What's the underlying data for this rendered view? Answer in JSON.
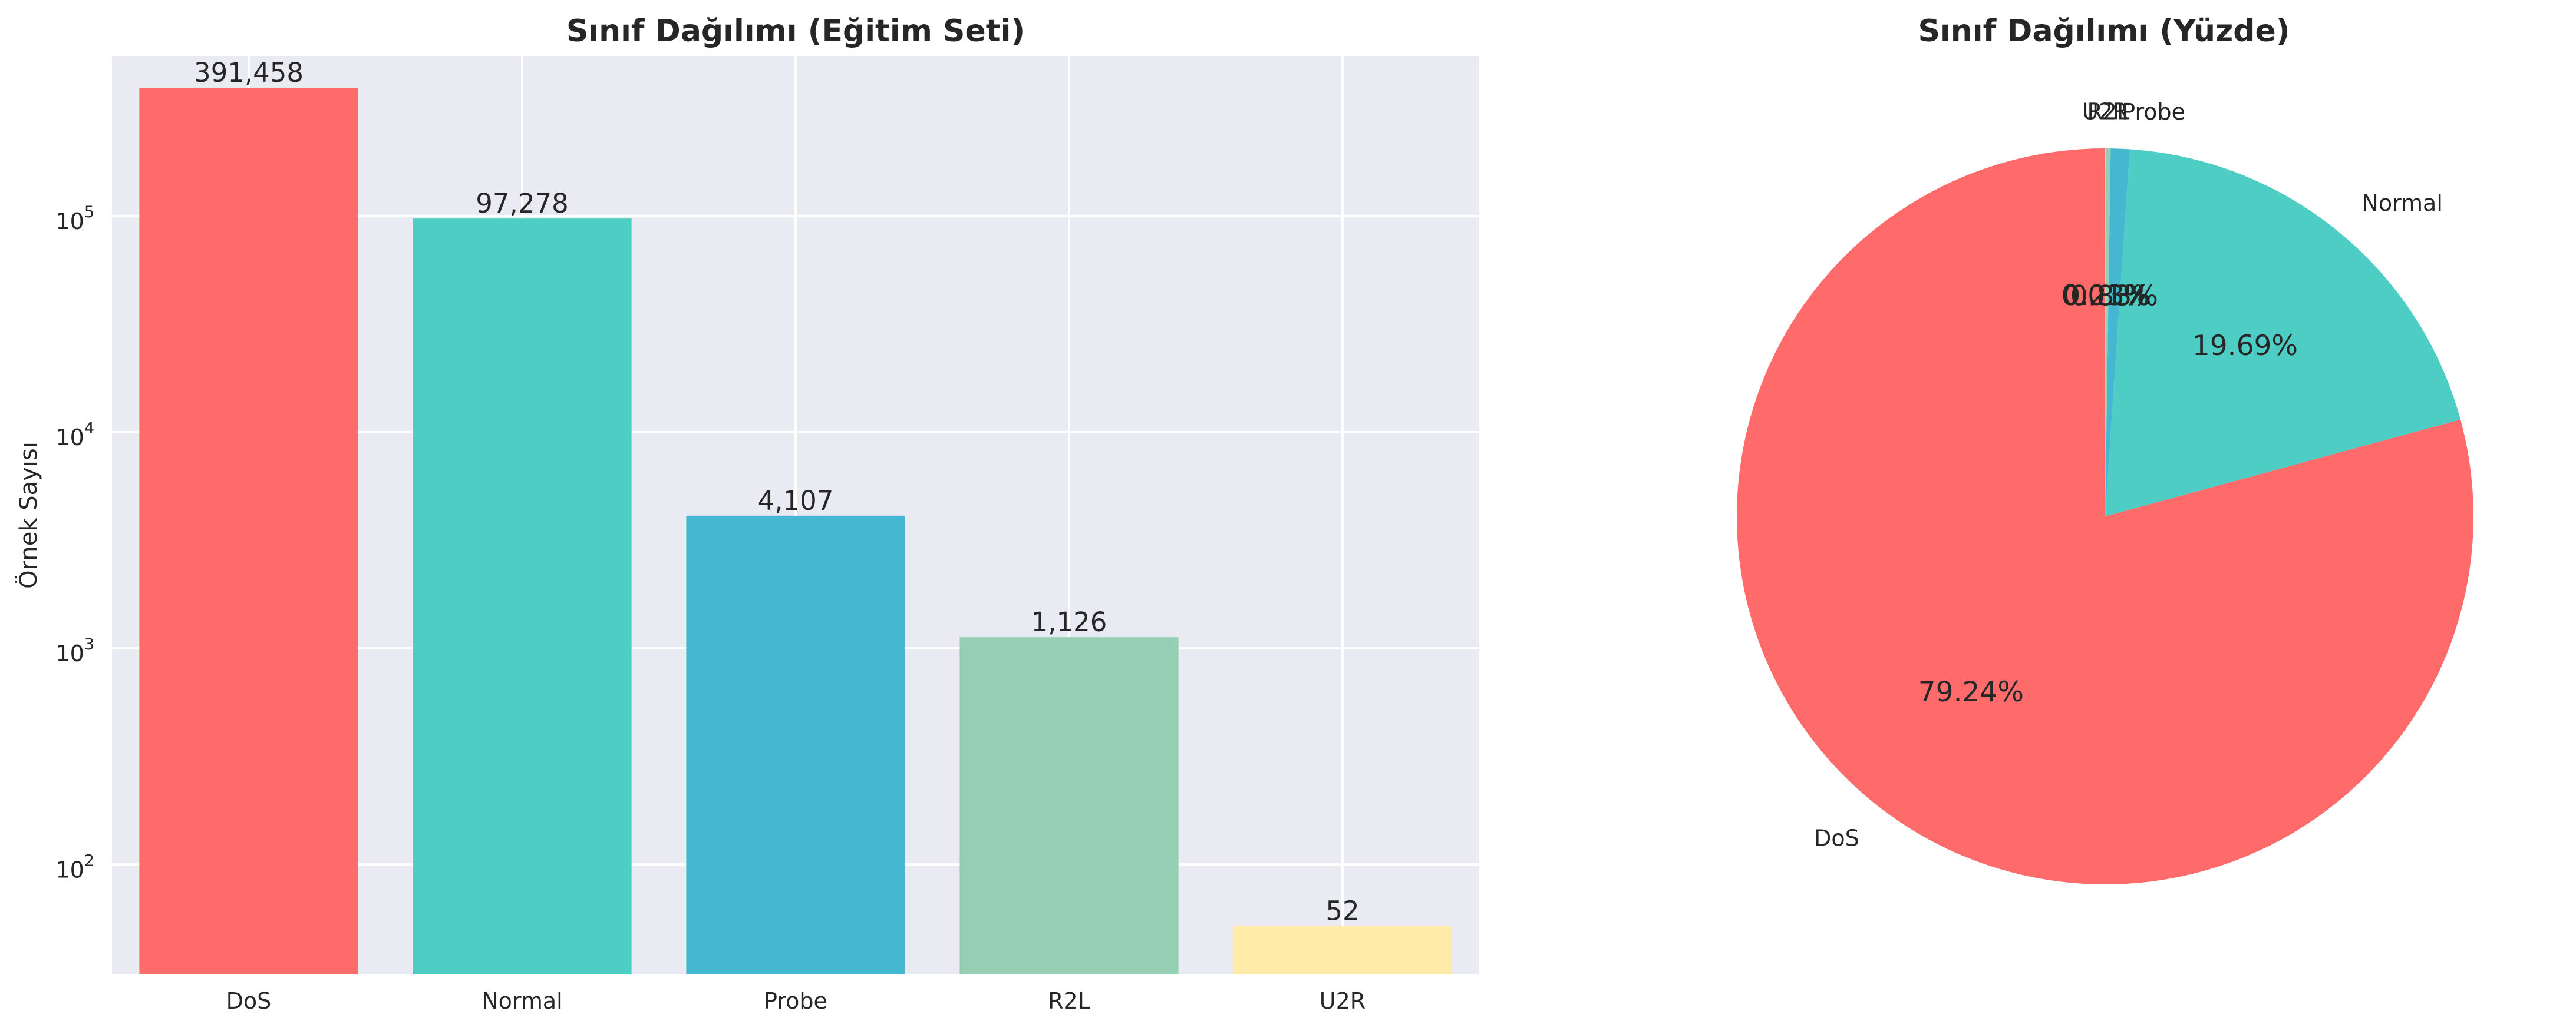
{
  "chart_data": [
    {
      "type": "bar",
      "title": "Sınıf Dağılımı (Eğitim Seti)",
      "xlabel": "",
      "ylabel": "Örnek Sayısı",
      "yscale": "log",
      "ylim": [
        31,
        550000
      ],
      "grid": true,
      "categories": [
        "DoS",
        "Normal",
        "Probe",
        "R2L",
        "U2R"
      ],
      "values": [
        391458,
        97278,
        4107,
        1126,
        52
      ],
      "value_labels": [
        "391,458",
        "97,278",
        "4,107",
        "1,126",
        "52"
      ],
      "colors": [
        "#ff6b6b",
        "#4ecdc4",
        "#45b7d1",
        "#96ceb4",
        "#ffeaa7"
      ],
      "yticks": [
        {
          "value": 100,
          "base": "10",
          "exp": "2"
        },
        {
          "value": 1000,
          "base": "10",
          "exp": "3"
        },
        {
          "value": 10000,
          "base": "10",
          "exp": "4"
        },
        {
          "value": 100000,
          "base": "10",
          "exp": "5"
        }
      ]
    },
    {
      "type": "pie",
      "title": "Sınıf Dağılımı (Yüzde)",
      "start_angle_deg": 90,
      "direction": "counterclockwise",
      "labels": [
        "DoS",
        "Normal",
        "Probe",
        "R2L",
        "U2R"
      ],
      "values": [
        391458,
        97278,
        4107,
        1126,
        52
      ],
      "percent_labels": [
        "79.24%",
        "19.69%",
        "0.83%",
        "0.23%",
        "0.01%"
      ],
      "colors": [
        "#ff6b6b",
        "#4ecdc4",
        "#45b7d1",
        "#96ceb4",
        "#ffeaa7"
      ]
    }
  ]
}
